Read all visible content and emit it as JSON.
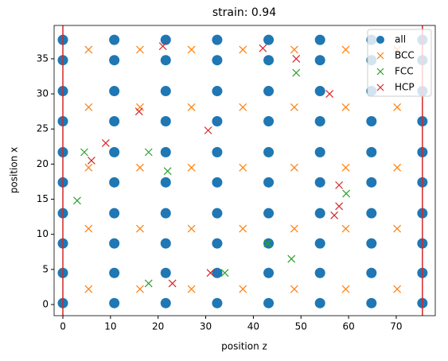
{
  "chart_data": {
    "type": "scatter",
    "title": "strain: 0.94",
    "x_label": "position z",
    "y_label": "position x",
    "xlim": [
      -1.84,
      78.2
    ],
    "ylim": [
      -1.59,
      39.75
    ],
    "xticks": [
      0,
      10,
      20,
      30,
      40,
      50,
      60,
      70
    ],
    "yticks": [
      0,
      5,
      10,
      15,
      20,
      25,
      30,
      35
    ],
    "vlines": [
      0,
      75.5
    ],
    "vline_color": "#d62728",
    "legend": "upper right",
    "series": [
      {
        "name": "all",
        "color": "#1f77b4",
        "marker": "o",
        "x": [
          0,
          10.8,
          21.6,
          32.4,
          43.2,
          54,
          64.8,
          75.5,
          0,
          10.8,
          21.6,
          32.4,
          43.2,
          54,
          64.8,
          75.5,
          0,
          10.8,
          21.6,
          32.4,
          43.2,
          54,
          64.8,
          75.5,
          0,
          10.8,
          21.6,
          32.4,
          43.2,
          54,
          64.8,
          75.5,
          0,
          10.8,
          21.6,
          32.4,
          43.2,
          54,
          64.8,
          75.5,
          0,
          10.8,
          21.6,
          32.4,
          43.2,
          54,
          64.8,
          75.5,
          0,
          10.8,
          21.6,
          32.4,
          43.2,
          54,
          64.8,
          75.5,
          0,
          10.8,
          21.6,
          32.4,
          43.2,
          54,
          64.8,
          75.5,
          0,
          10.8,
          21.6,
          32.4,
          43.2,
          54,
          64.8,
          75.5,
          0,
          10.8,
          21.6,
          32.4,
          43.2,
          54,
          64.8,
          75.5
        ],
        "values": [
          0.2,
          0.2,
          0.2,
          0.2,
          0.2,
          0.2,
          0.2,
          0.2,
          4.5,
          4.5,
          4.5,
          4.5,
          4.5,
          4.5,
          4.5,
          4.5,
          8.7,
          8.7,
          8.7,
          8.7,
          8.7,
          8.7,
          8.7,
          8.7,
          13,
          13,
          13,
          13,
          13,
          13,
          13,
          13,
          17.4,
          17.4,
          17.4,
          17.4,
          17.4,
          17.4,
          17.4,
          17.4,
          21.7,
          21.7,
          21.7,
          21.7,
          21.7,
          21.7,
          21.7,
          21.7,
          26.1,
          26.1,
          26.1,
          26.1,
          26.1,
          26.1,
          26.1,
          26.1,
          30.4,
          30.4,
          30.4,
          30.4,
          30.4,
          30.4,
          30.4,
          30.4,
          34.8,
          34.8,
          34.8,
          34.8,
          34.8,
          34.8,
          34.8,
          34.8,
          37.7,
          37.7,
          37.7,
          37.7,
          37.7,
          37.7,
          37.7,
          37.7
        ]
      },
      {
        "name": "BCC",
        "color": "#ff7f0e",
        "marker": "x",
        "x": [
          5.4,
          16.2,
          27,
          37.8,
          48.6,
          59.4,
          70.2,
          5.4,
          16.2,
          27,
          37.8,
          48.6,
          59.4,
          70.2,
          5.4,
          16.2,
          27,
          37.8,
          48.6,
          59.4,
          70.2,
          5.4,
          16.2,
          27,
          37.8,
          48.6,
          59.4,
          70.2,
          5.4,
          16.2,
          27,
          37.8,
          48.6,
          59.4,
          70.2
        ],
        "values": [
          2.2,
          2.2,
          2.2,
          2.2,
          2.2,
          2.2,
          2.2,
          10.8,
          10.8,
          10.8,
          10.8,
          10.8,
          10.8,
          10.8,
          19.5,
          19.5,
          19.5,
          19.5,
          19.5,
          19.5,
          19.5,
          28.1,
          28.1,
          28.1,
          28.1,
          28.1,
          28.1,
          28.1,
          36.3,
          36.3,
          36.3,
          36.3,
          36.3,
          36.3,
          36.3
        ]
      },
      {
        "name": "FCC",
        "color": "#2ca02c",
        "marker": "x",
        "x": [
          3,
          4.5,
          18,
          22,
          34,
          43,
          48,
          49,
          59.5,
          18
        ],
        "values": [
          14.8,
          21.7,
          3,
          19,
          4.5,
          8.7,
          6.5,
          33,
          15.8,
          21.7
        ]
      },
      {
        "name": "HCP",
        "color": "#d62728",
        "marker": "x",
        "x": [
          21,
          42,
          49,
          56,
          16,
          30.5,
          31,
          23,
          58,
          58,
          57,
          6,
          9
        ],
        "values": [
          36.8,
          36.5,
          35,
          30,
          27.5,
          24.8,
          4.5,
          3,
          17,
          14,
          12.7,
          20.5,
          23
        ]
      }
    ]
  }
}
